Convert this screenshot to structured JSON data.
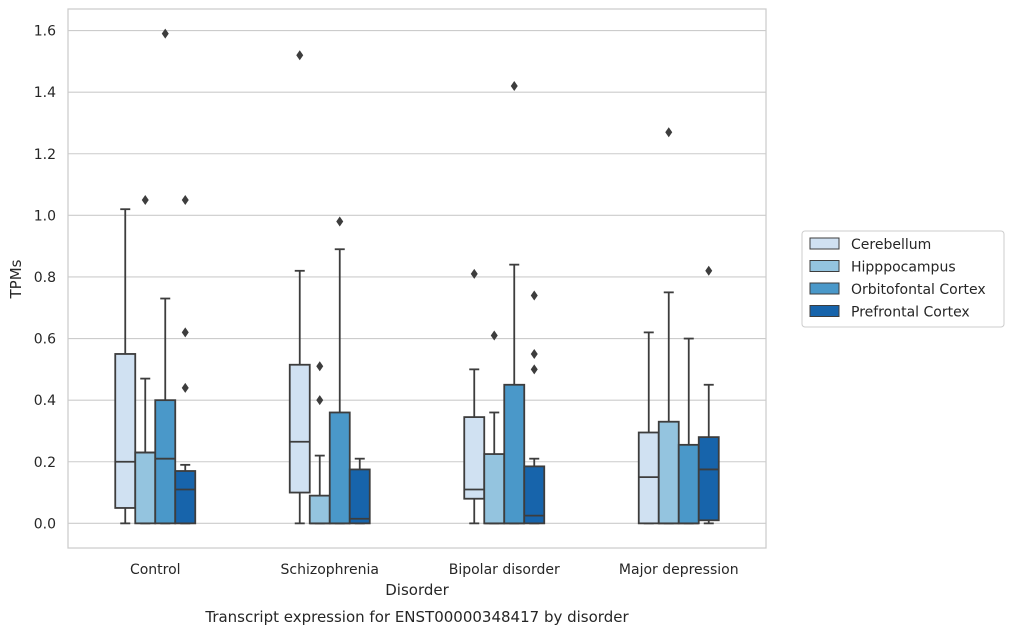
{
  "chart_data": {
    "type": "boxplot",
    "caption": "Transcript expression for ENST00000348417 by disorder",
    "xlabel": "Disorder",
    "ylabel": "TPMs",
    "ylim": [
      -0.08,
      1.67
    ],
    "yticks": [
      0.0,
      0.2,
      0.4,
      0.6,
      0.8,
      1.0,
      1.2,
      1.4,
      1.6
    ],
    "ytick_labels": [
      "0.0",
      "0.2",
      "0.4",
      "0.6",
      "0.8",
      "1.0",
      "1.2",
      "1.4",
      "1.6"
    ],
    "grid": true,
    "legend_position": "right",
    "categories": [
      "Control",
      "Schizophrenia",
      "Bipolar disorder",
      "Major depression"
    ],
    "series": [
      {
        "name": "Cerebellum",
        "color": "#d0e1f2",
        "boxes": [
          {
            "whislo": 0.0,
            "q1": 0.05,
            "med": 0.2,
            "q3": 0.55,
            "whishi": 1.02,
            "fliers": []
          },
          {
            "whislo": 0.0,
            "q1": 0.1,
            "med": 0.265,
            "q3": 0.515,
            "whishi": 0.82,
            "fliers": [
              1.52
            ]
          },
          {
            "whislo": 0.0,
            "q1": 0.08,
            "med": 0.11,
            "q3": 0.345,
            "whishi": 0.5,
            "fliers": [
              0.81
            ]
          },
          {
            "whislo": 0.0,
            "q1": 0.0,
            "med": 0.15,
            "q3": 0.295,
            "whishi": 0.62,
            "fliers": []
          }
        ]
      },
      {
        "name": "Hipppocampus",
        "color": "#94c4df",
        "boxes": [
          {
            "whislo": 0.0,
            "q1": 0.0,
            "med": 0.23,
            "q3": 0.23,
            "whishi": 0.47,
            "fliers": [
              1.05
            ]
          },
          {
            "whislo": 0.0,
            "q1": 0.0,
            "med": 0.0,
            "q3": 0.09,
            "whishi": 0.22,
            "fliers": [
              0.4,
              0.51
            ]
          },
          {
            "whislo": 0.0,
            "q1": 0.0,
            "med": 0.0,
            "q3": 0.225,
            "whishi": 0.36,
            "fliers": [
              0.61
            ]
          },
          {
            "whislo": 0.0,
            "q1": 0.0,
            "med": 0.0,
            "q3": 0.33,
            "whishi": 0.75,
            "fliers": [
              1.27
            ]
          }
        ]
      },
      {
        "name": "Orbitofontal Cortex",
        "color": "#4a98c9",
        "boxes": [
          {
            "whislo": 0.0,
            "q1": 0.0,
            "med": 0.21,
            "q3": 0.4,
            "whishi": 0.73,
            "fliers": [
              1.59
            ]
          },
          {
            "whislo": 0.0,
            "q1": 0.0,
            "med": 0.0,
            "q3": 0.36,
            "whishi": 0.89,
            "fliers": [
              0.98
            ]
          },
          {
            "whislo": 0.0,
            "q1": 0.0,
            "med": 0.0,
            "q3": 0.45,
            "whishi": 0.84,
            "fliers": [
              1.42
            ]
          },
          {
            "whislo": 0.0,
            "q1": 0.0,
            "med": 0.0,
            "q3": 0.255,
            "whishi": 0.6,
            "fliers": []
          }
        ]
      },
      {
        "name": "Prefrontal Cortex",
        "color": "#1764ab",
        "boxes": [
          {
            "whislo": 0.0,
            "q1": 0.0,
            "med": 0.11,
            "q3": 0.17,
            "whishi": 0.19,
            "fliers": [
              0.44,
              0.62,
              1.05
            ]
          },
          {
            "whislo": 0.0,
            "q1": 0.0,
            "med": 0.015,
            "q3": 0.175,
            "whishi": 0.21,
            "fliers": []
          },
          {
            "whislo": 0.0,
            "q1": 0.0,
            "med": 0.025,
            "q3": 0.185,
            "whishi": 0.21,
            "fliers": [
              0.5,
              0.55,
              0.74
            ]
          },
          {
            "whislo": 0.0,
            "q1": 0.01,
            "med": 0.175,
            "q3": 0.28,
            "whishi": 0.45,
            "fliers": [
              0.82
            ]
          }
        ]
      }
    ]
  }
}
